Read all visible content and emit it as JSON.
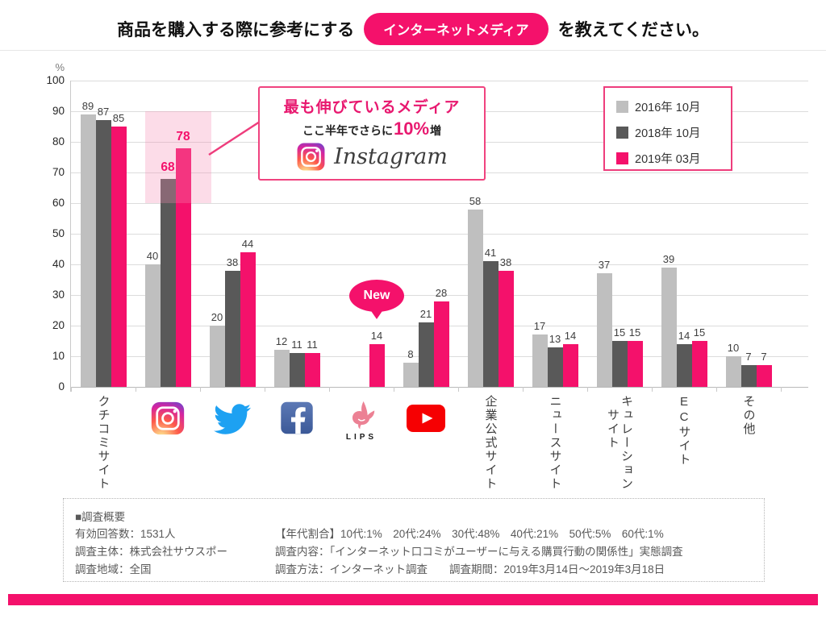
{
  "title": {
    "prefix": "商品を購入する際に参考にする",
    "highlight": "インターネットメディア",
    "suffix": "を教えてください。"
  },
  "annotation": {
    "title": "最も伸びているメディア",
    "growth_prefix": "ここ半年でさらに",
    "growth_value": "10%",
    "growth_suffix": "増",
    "brand": "Instagram"
  },
  "chart_data": {
    "type": "bar",
    "title": "商品を購入する際に参考にするインターネットメディア",
    "ylabel": "%",
    "ylim": [
      0,
      100
    ],
    "ytick_step": 10,
    "grid": true,
    "legend_position": "top-right",
    "series": [
      {
        "name": "2016年 10月",
        "color": "#BFBFBF"
      },
      {
        "name": "2018年 10月",
        "color": "#595959"
      },
      {
        "name": "2019年 03月",
        "color": "#F4116B"
      }
    ],
    "categories": [
      {
        "id": "kuchikomi-site",
        "label": "クチコミサイト",
        "values": [
          89,
          87,
          85
        ]
      },
      {
        "id": "instagram",
        "label": "Instagram",
        "icon": "instagram-icon",
        "values": [
          40,
          68,
          78
        ],
        "highlighted": true
      },
      {
        "id": "twitter",
        "label": "Twitter",
        "icon": "twitter-icon",
        "values": [
          20,
          38,
          44
        ]
      },
      {
        "id": "facebook",
        "label": "Facebook",
        "icon": "facebook-icon",
        "values": [
          12,
          11,
          11
        ]
      },
      {
        "id": "lips",
        "label": "LIPS",
        "icon": "lips-icon",
        "caption": "LIPS",
        "values": [
          null,
          null,
          14
        ],
        "badge": "New"
      },
      {
        "id": "youtube",
        "label": "YouTube",
        "icon": "youtube-icon",
        "values": [
          8,
          21,
          28
        ]
      },
      {
        "id": "corporate-official-site",
        "label": "企業公式サイト",
        "values": [
          58,
          41,
          38
        ]
      },
      {
        "id": "news-site",
        "label": "ニュースサイト",
        "values": [
          17,
          13,
          14
        ]
      },
      {
        "id": "curation-site",
        "label": "キュレーション\n　サイト",
        "values": [
          37,
          15,
          15
        ]
      },
      {
        "id": "ec-site",
        "label": "ECサイト",
        "values": [
          39,
          14,
          15
        ]
      },
      {
        "id": "other",
        "label": "その他",
        "values": [
          10,
          7,
          7
        ]
      }
    ]
  },
  "footer": {
    "heading": "■調査概要",
    "left": [
      "有効回答数：1531人",
      "調査主体：株式会社サウスポー",
      "調査地域：全国"
    ],
    "right": [
      "【年代割合】10代:1%　20代:24%　30代:48%　40代:21%　50代:5%　60代:1%",
      "調査内容：「インターネット口コミがユーザーに与える購買行動の関係性」実態調査",
      "調査方法：インターネット調査　　調査期間：2019年3月14日～2019年3月18日"
    ]
  },
  "colors": {
    "accent": "#F4116B",
    "series_2016": "#BFBFBF",
    "series_2018": "#595959",
    "series_2019": "#F4116B",
    "highlight_fill": "#F9CFE0"
  }
}
